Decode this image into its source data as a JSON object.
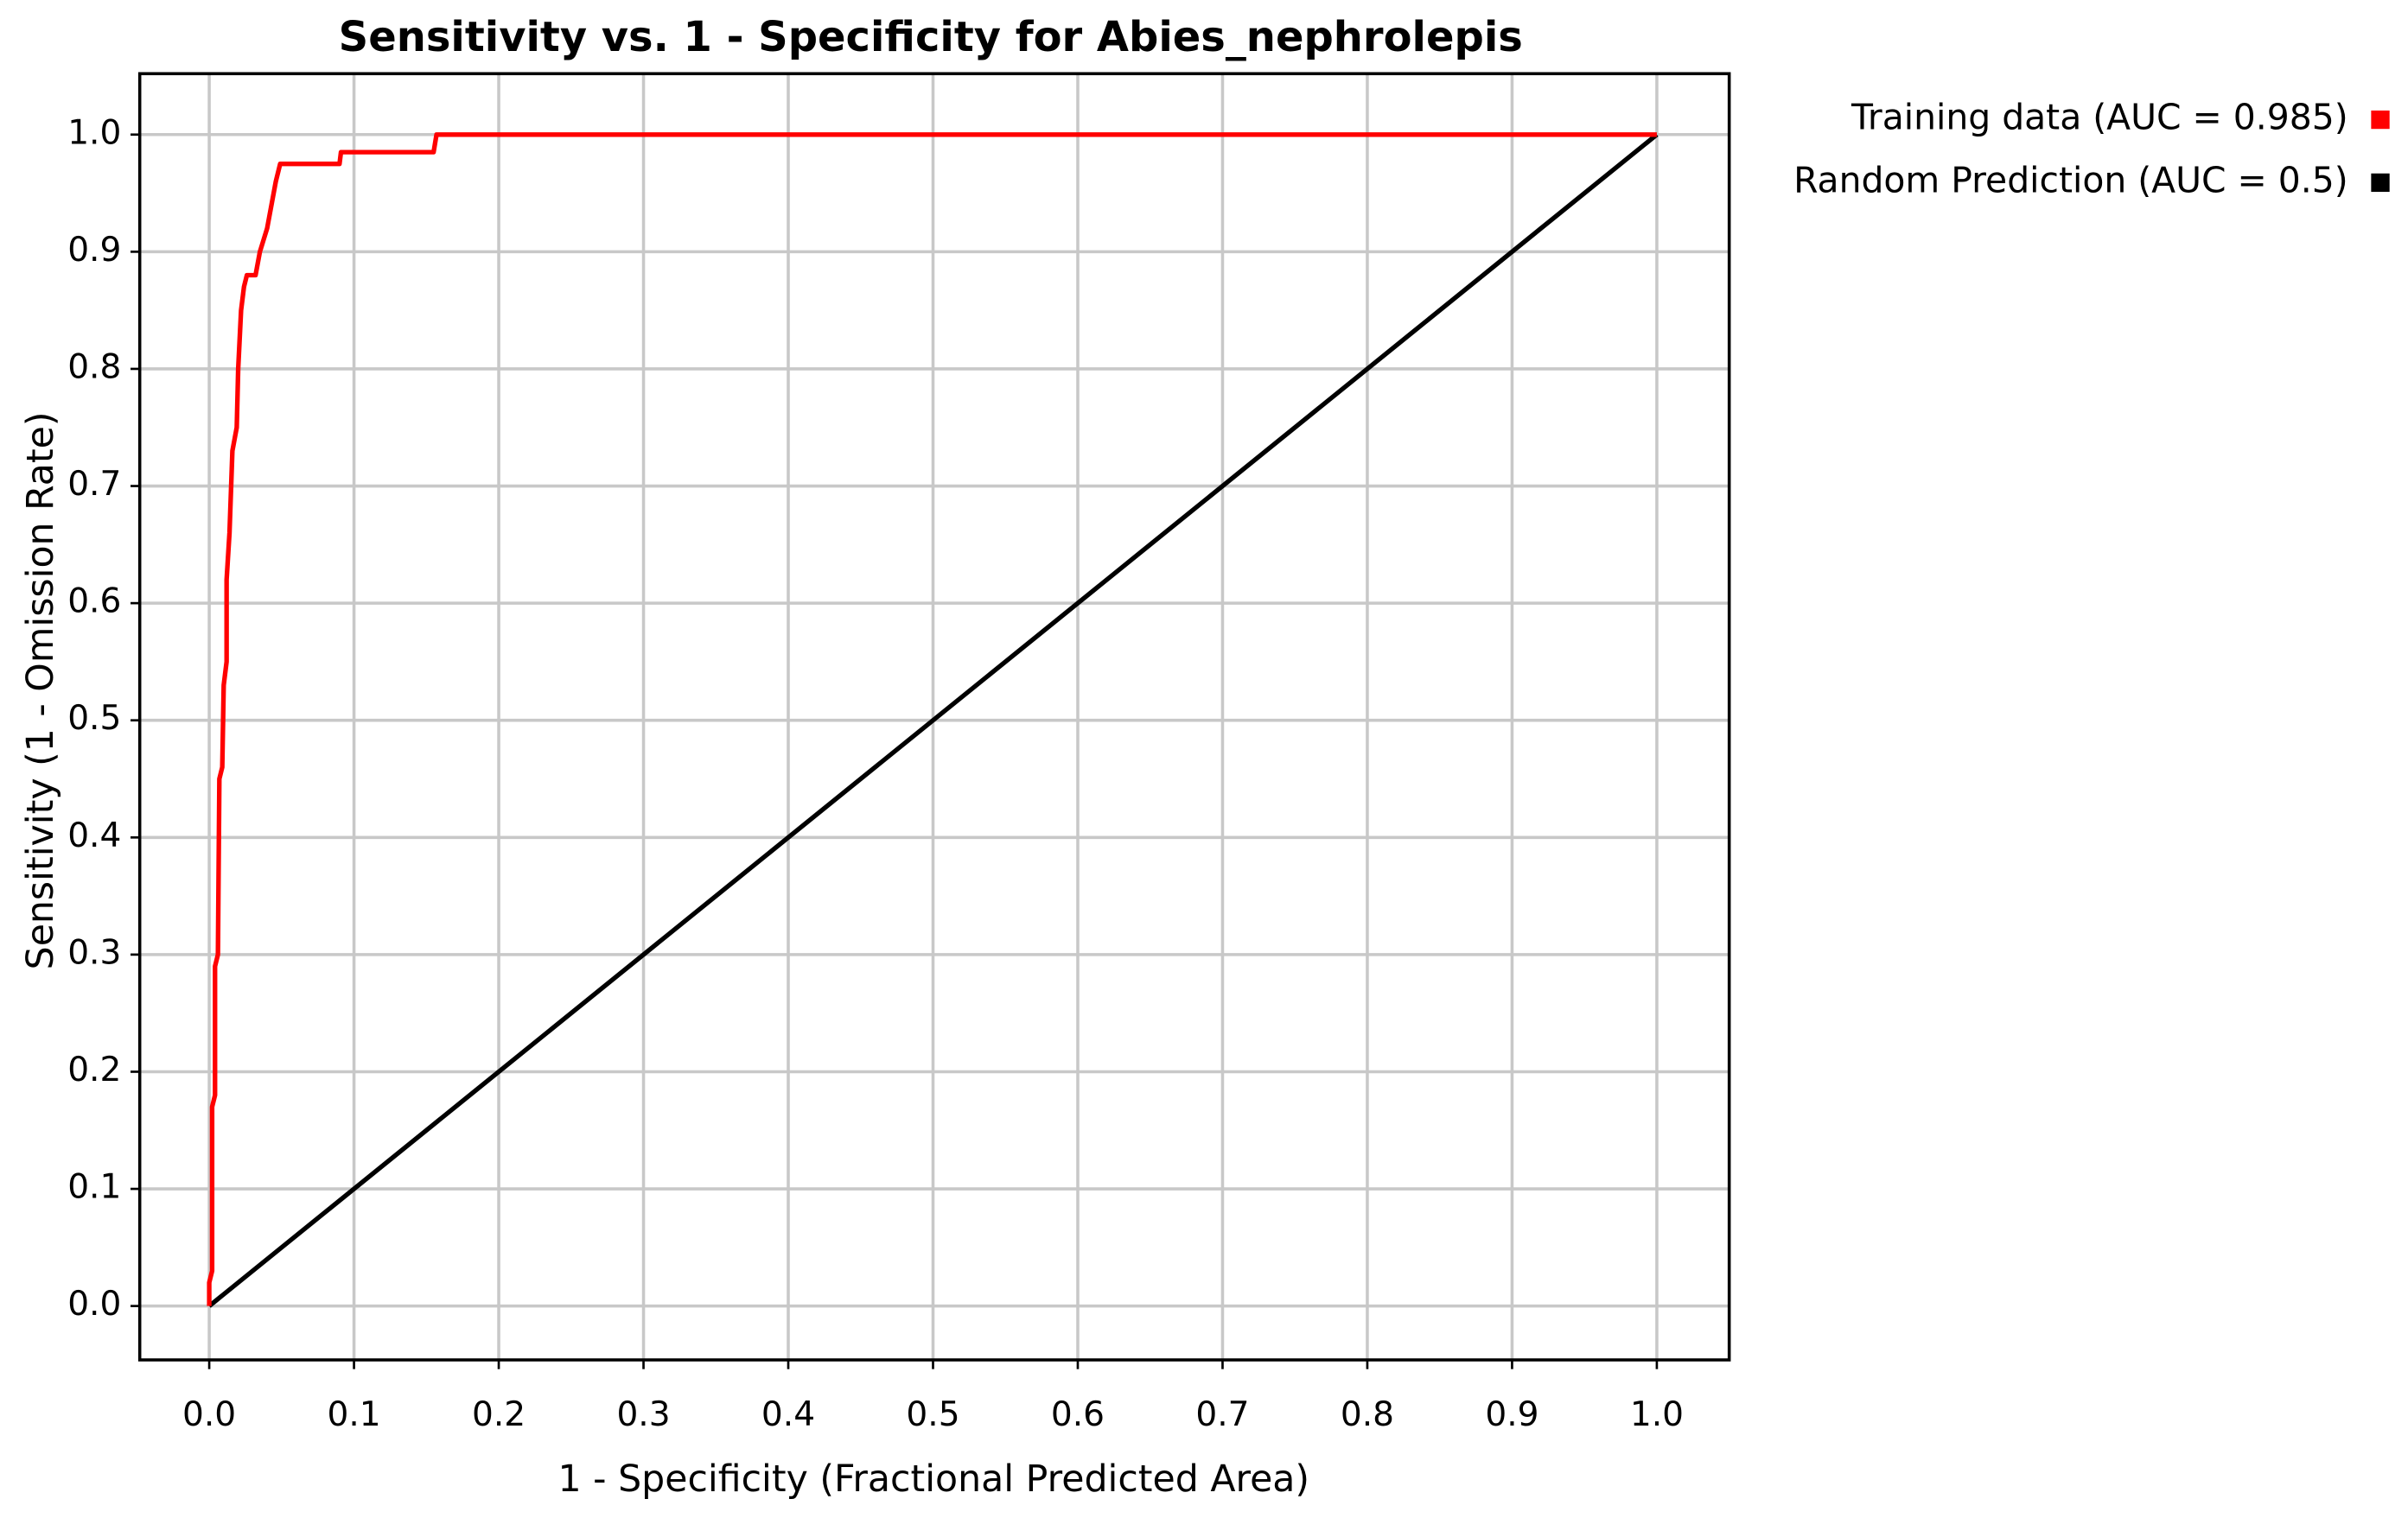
{
  "chart_data": {
    "type": "line",
    "title": "Sensitivity vs. 1 - Specificity for Abies_nephrolepis",
    "x_label": "1 - Specificity  (Fractional Predicted Area)",
    "y_label": "Sensitivity  (1 - Omission Rate)",
    "xlim": [
      -0.048,
      1.05
    ],
    "ylim": [
      -0.046,
      1.052
    ],
    "xticks": [
      {
        "value": 0,
        "label": "0.0"
      },
      0.1,
      0.2,
      0.3,
      0.4,
      0.5,
      0.6,
      0.7,
      0.8,
      0.9,
      {
        "value": 1,
        "label": "1.0"
      }
    ],
    "yticks": [
      {
        "value": 0,
        "label": "0.0"
      },
      0.1,
      0.2,
      0.3,
      0.4,
      0.5,
      0.6,
      0.7,
      0.8,
      0.9,
      {
        "value": 1,
        "label": "1.0"
      }
    ],
    "grid": true,
    "legend": "right",
    "series": [
      {
        "name": "Training data (AUC = 0.985)",
        "color": "#ff0000",
        "x": [
          0,
          0,
          0.002,
          0.002,
          0.004,
          0.004,
          0.006,
          0.007,
          0.009,
          0.01,
          0.012,
          0.012,
          0.014,
          0.016,
          0.019,
          0.02,
          0.022,
          0.024,
          0.026,
          0.032,
          0.035,
          0.04,
          0.046,
          0.049,
          0.09,
          0.091,
          0.155,
          0.157,
          1
        ],
        "values": [
          0,
          0.02,
          0.03,
          0.17,
          0.18,
          0.29,
          0.3,
          0.45,
          0.46,
          0.53,
          0.55,
          0.62,
          0.66,
          0.73,
          0.75,
          0.8,
          0.85,
          0.87,
          0.88,
          0.88,
          0.9,
          0.92,
          0.96,
          0.975,
          0.975,
          0.985,
          0.985,
          1,
          1
        ]
      },
      {
        "name": "Random Prediction (AUC = 0.5)",
        "color": "#000000",
        "x": [
          0,
          1
        ],
        "values": [
          0,
          1
        ]
      }
    ]
  }
}
